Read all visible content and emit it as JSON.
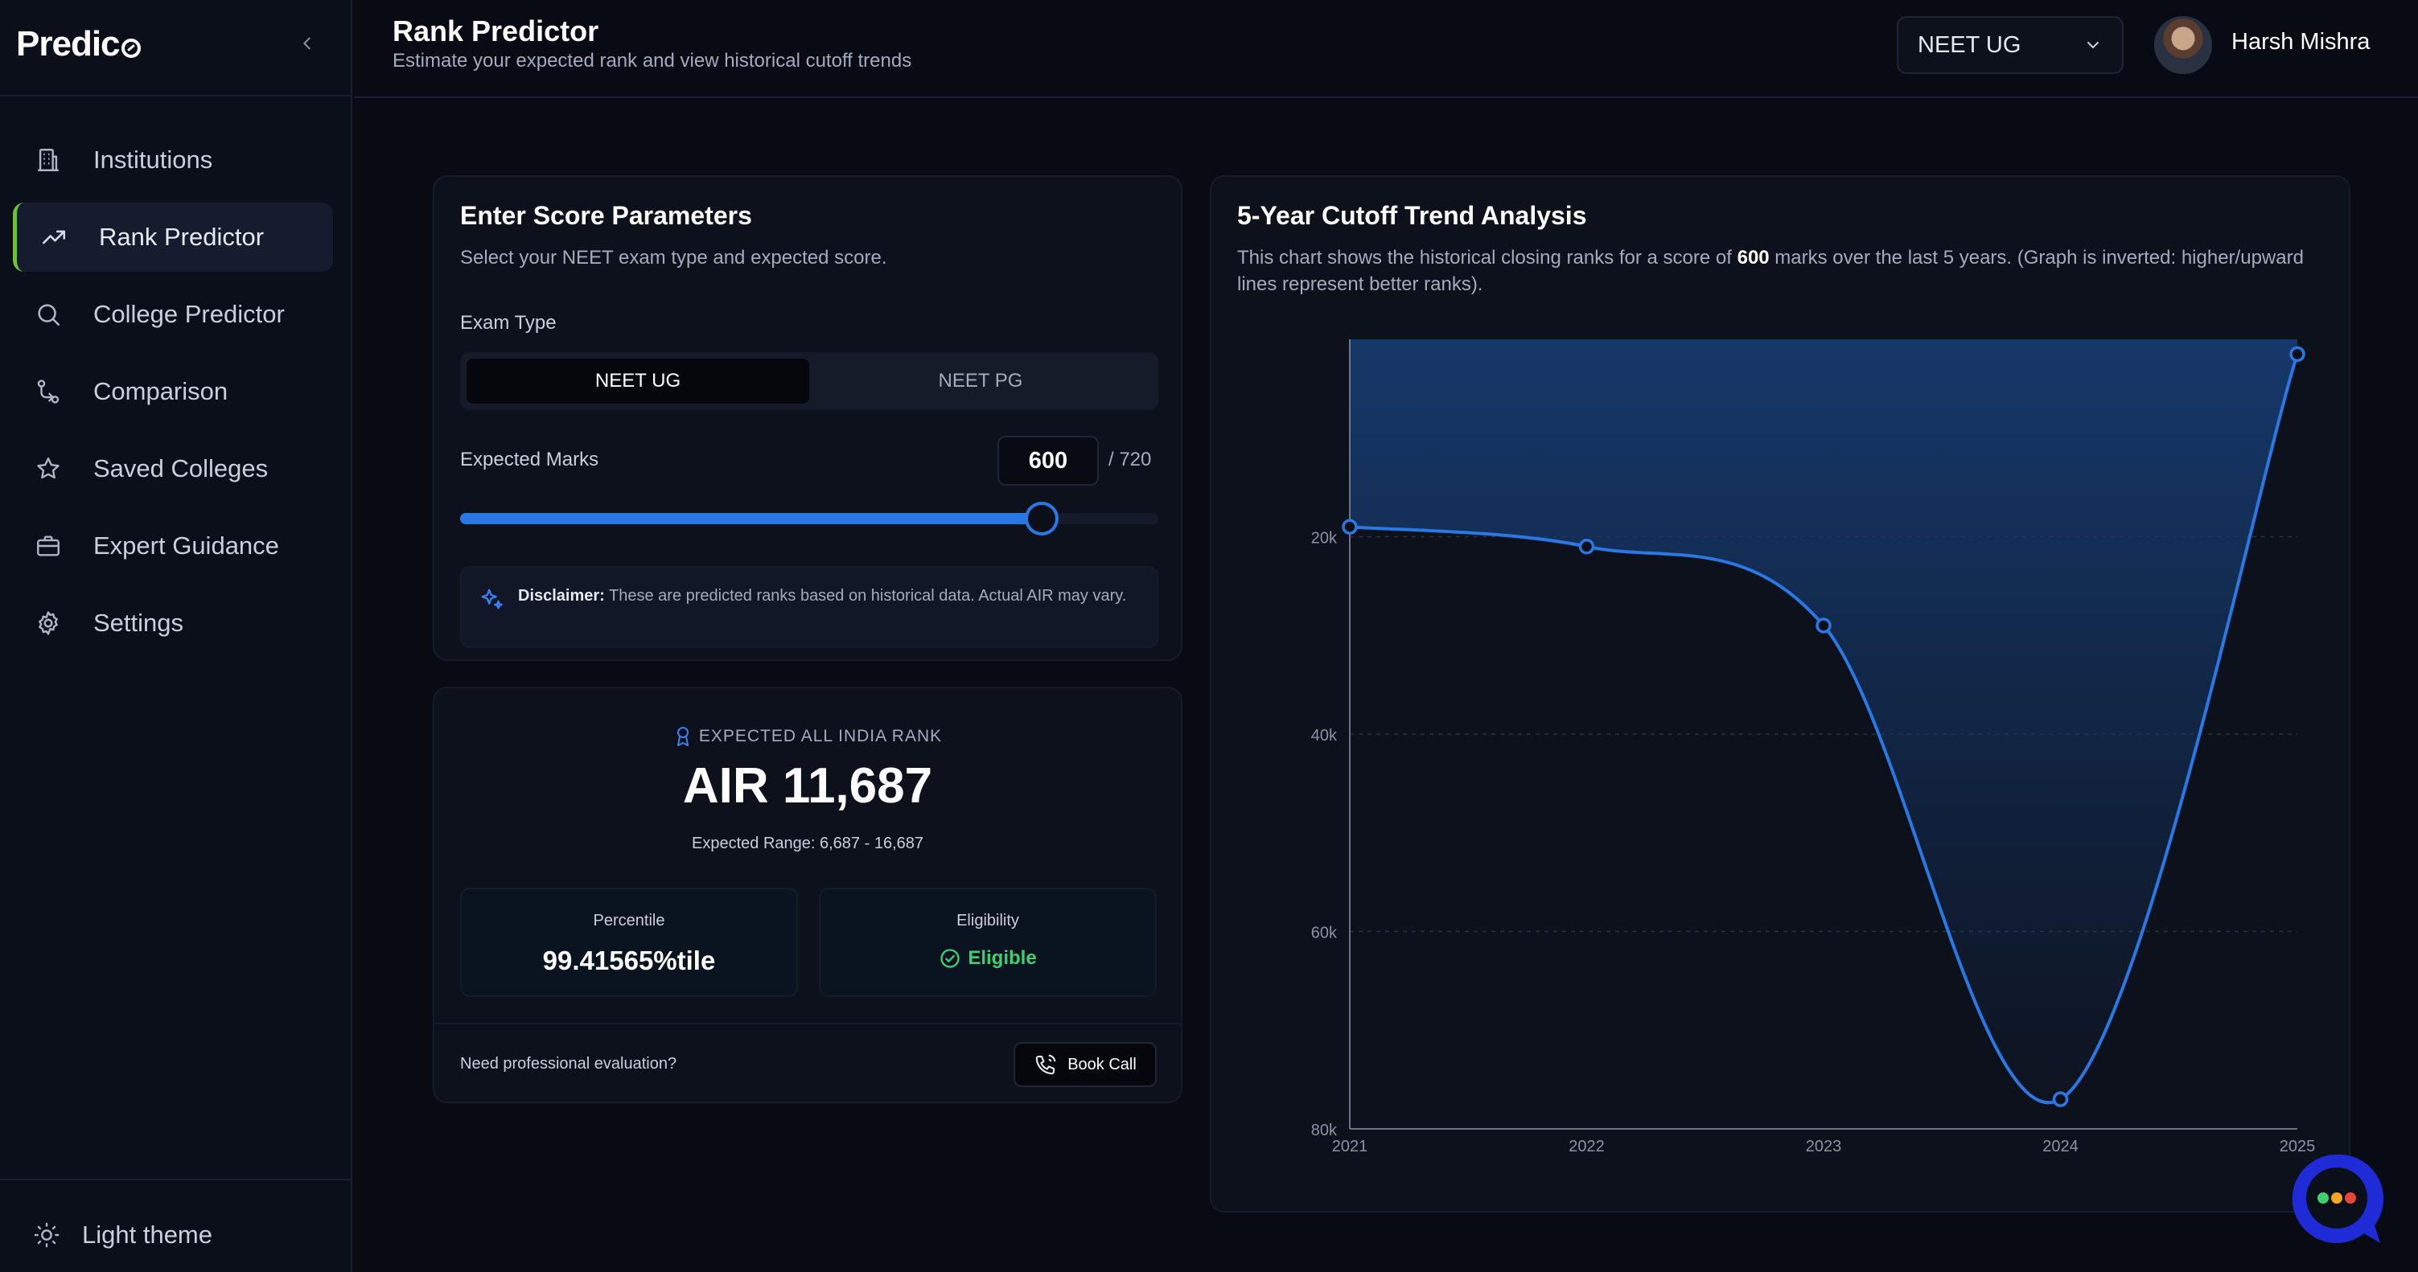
{
  "brand": {
    "name": "Predic"
  },
  "sidebar": {
    "items": [
      {
        "label": "Institutions",
        "icon": "building-icon",
        "active": false
      },
      {
        "label": "Rank Predictor",
        "icon": "trending-up-icon",
        "active": true
      },
      {
        "label": "College Predictor",
        "icon": "search-icon",
        "active": false
      },
      {
        "label": "Comparison",
        "icon": "compare-icon",
        "active": false
      },
      {
        "label": "Saved Colleges",
        "icon": "star-icon",
        "active": false
      },
      {
        "label": "Expert Guidance",
        "icon": "briefcase-icon",
        "active": false
      },
      {
        "label": "Settings",
        "icon": "gear-icon",
        "active": false
      }
    ],
    "theme_toggle": "Light theme"
  },
  "header": {
    "title": "Rank Predictor",
    "subtitle": "Estimate your expected rank and view historical cutoff trends",
    "exam_select": "NEET UG",
    "user_name": "Harsh Mishra"
  },
  "params": {
    "title": "Enter Score Parameters",
    "desc": "Select your NEET exam type and expected score.",
    "exam_type_label": "Exam Type",
    "exam_options": [
      "NEET UG",
      "NEET PG"
    ],
    "selected_exam": "NEET UG",
    "marks_label": "Expected Marks",
    "marks_value": "600",
    "marks_total": "/ 720",
    "slider_fraction": 0.8333,
    "disclaimer_bold": "Disclaimer:",
    "disclaimer_text": " These are predicted ranks based on historical data. Actual AIR may vary."
  },
  "result": {
    "label": "EXPECTED ALL INDIA RANK",
    "value": "AIR 11,687",
    "range": "Expected Range: 6,687 - 16,687",
    "percentile_label": "Percentile",
    "percentile_value": "99.41565%tile",
    "eligibility_label": "Eligibility",
    "eligibility_value": "Eligible",
    "foot_question": "Need professional evaluation?",
    "book_call": "Book Call"
  },
  "chart_panel": {
    "title": "5-Year Cutoff Trend Analysis",
    "desc_before": "This chart shows the historical closing ranks for a score of ",
    "desc_bold": "600",
    "desc_after": " marks over the last 5 years. (Graph is inverted: higher/upward lines represent better ranks)."
  },
  "chart_data": {
    "type": "area",
    "x": [
      "2021",
      "2022",
      "2023",
      "2024",
      "2025"
    ],
    "series": [
      {
        "values": [
          19000,
          21000,
          29000,
          77000,
          1500
        ]
      }
    ],
    "ylim": [
      0,
      80000
    ],
    "y_inverted": true,
    "yticks": [
      20000,
      40000,
      60000,
      80000
    ],
    "ytick_labels": [
      "20k",
      "40k",
      "60k",
      "80k"
    ],
    "grid": true,
    "line_color": "#2a78e4",
    "fill_color": "#163a6e"
  },
  "colors": {
    "accent": "#2a78e4",
    "active_marker": "#6fbf3a",
    "eligible": "#3ed070"
  }
}
